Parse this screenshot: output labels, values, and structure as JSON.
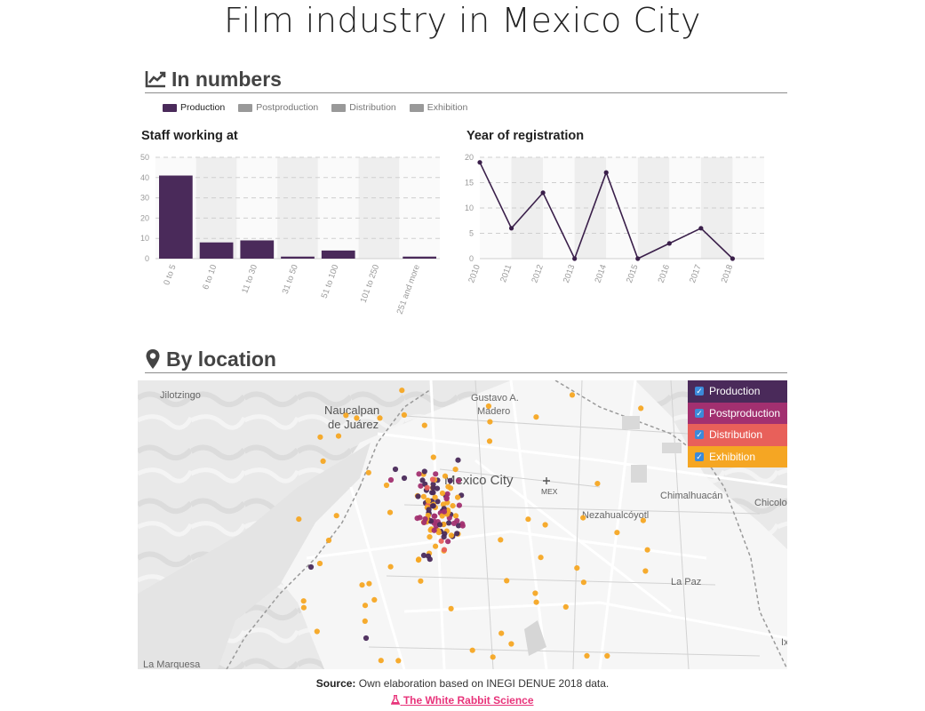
{
  "page": {
    "title": "Film industry in Mexico City"
  },
  "numbers_section": {
    "heading": "In numbers",
    "icon": "line-chart-icon"
  },
  "location_section": {
    "heading": "By location",
    "icon": "map-marker-icon"
  },
  "legend": [
    {
      "label": "Production",
      "color": "#4a2a5a",
      "active": true
    },
    {
      "label": "Postproduction",
      "color": "#999999",
      "active": false
    },
    {
      "label": "Distribution",
      "color": "#999999",
      "active": false
    },
    {
      "label": "Exhibition",
      "color": "#999999",
      "active": false
    }
  ],
  "chart_data": [
    {
      "type": "bar",
      "title": "Staff working at",
      "categories": [
        "0 to 5",
        "6 to 10",
        "11 to 30",
        "31 to 50",
        "51 to 100",
        "101 to 250",
        "251 and more"
      ],
      "values": [
        41,
        8,
        9,
        1,
        4,
        0,
        1
      ],
      "ylim": [
        0,
        50
      ],
      "yticks": [
        0,
        10,
        20,
        30,
        40,
        50
      ],
      "color": "#4a2a5a",
      "grid": true
    },
    {
      "type": "line",
      "title": "Year of registration",
      "x": [
        "2010",
        "2011",
        "2012",
        "2013",
        "2014",
        "2015",
        "2016",
        "2017",
        "2018"
      ],
      "values": [
        19,
        6,
        13,
        0,
        17,
        0,
        3,
        6,
        0
      ],
      "ylim": [
        0,
        20
      ],
      "yticks": [
        0,
        5,
        10,
        15,
        20
      ],
      "color": "#3a1f4a",
      "grid": true
    }
  ],
  "map": {
    "place_labels": [
      "Jilotzingo",
      "Naucalpan",
      "de Juárez",
      "Gustavo A.",
      "Madero",
      "Mexico City",
      "MEX",
      "Chimalhuacán",
      "Chicolo",
      "Nezahualcóyotl",
      "La Paz",
      "La Marquesa",
      "Ix"
    ],
    "legend": [
      {
        "label": "Production",
        "color": "#4a2a5a",
        "checked": true
      },
      {
        "label": "Postproduction",
        "color": "#a23070",
        "checked": true
      },
      {
        "label": "Distribution",
        "color": "#e8605a",
        "checked": true
      },
      {
        "label": "Exhibition",
        "color": "#f5a623",
        "checked": true
      }
    ]
  },
  "source": {
    "label": "Source:",
    "text": "Own elaboration based on INEGI DENUE 2018 data."
  },
  "credit": {
    "text": "The White Rabbit Science",
    "icon": "flask-icon"
  }
}
